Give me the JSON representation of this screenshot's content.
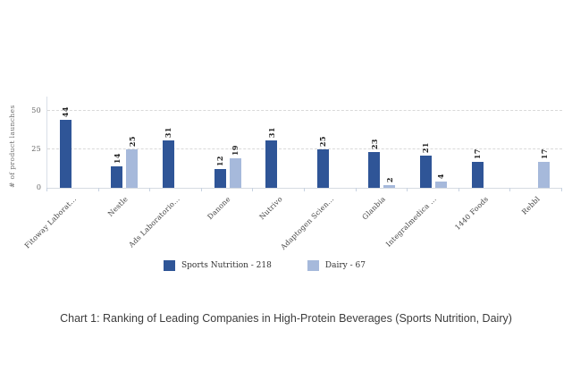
{
  "caption": "Chart 1: Ranking of Leading Companies in High-Protein Beverages (Sports Nutrition, Dairy)",
  "colors": {
    "sports_nutrition": "#2F5597",
    "dairy": "#A6B9DB",
    "gridline": "#d9d9d9",
    "axis": "#d6dbe2",
    "tick": "#c7d2e1"
  },
  "chart_data": {
    "type": "bar",
    "title": "",
    "ylabel": "# of product launches",
    "xlabel": "",
    "ylim": [
      0,
      50
    ],
    "yticks": [
      "0",
      "25",
      "50"
    ],
    "grid": "horizontal dashed at 25 and 50",
    "legend_position": "bottom",
    "categories": [
      "Fitoway Laborat...",
      "Nestle",
      "Ads Laboratorio...",
      "Danone",
      "Nutrivo",
      "Adaptogen Scien...",
      "Glanbia",
      "Integralmedica ...",
      "1440 Foods",
      "Rebbl"
    ],
    "series": [
      {
        "name": "Sports Nutrition",
        "total": 218,
        "legend_label": "Sports Nutrition - 218",
        "color": "#2F5597",
        "values": [
          44,
          14,
          31,
          12,
          31,
          25,
          23,
          21,
          17,
          null
        ]
      },
      {
        "name": "Dairy",
        "total": 67,
        "legend_label": "Dairy - 67",
        "color": "#A6B9DB",
        "values": [
          null,
          25,
          null,
          19,
          null,
          null,
          2,
          4,
          null,
          17
        ]
      }
    ]
  }
}
